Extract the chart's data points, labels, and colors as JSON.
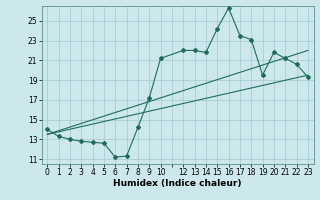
{
  "xlabel": "Humidex (Indice chaleur)",
  "background_color": "#cce8ec",
  "grid_color": "#aacdd4",
  "line_color": "#1e6b5e",
  "y_ticks": [
    11,
    13,
    15,
    17,
    19,
    21,
    23,
    25
  ],
  "xlim": [
    -0.5,
    23.5
  ],
  "ylim": [
    10.5,
    26.5
  ],
  "line1_x": [
    0,
    1,
    2,
    3,
    4,
    5,
    6,
    7,
    8,
    9,
    10,
    12,
    13,
    14,
    15,
    16,
    17,
    18,
    19,
    20,
    21,
    22,
    23
  ],
  "line1_y": [
    14.0,
    13.3,
    13.0,
    12.8,
    12.7,
    12.6,
    11.2,
    11.3,
    14.2,
    17.2,
    21.2,
    22.0,
    22.0,
    21.8,
    24.2,
    26.3,
    23.5,
    23.1,
    19.5,
    21.8,
    21.2,
    20.6,
    19.3
  ],
  "line2_x": [
    0,
    23
  ],
  "line2_y": [
    13.5,
    19.5
  ],
  "line3_x": [
    0,
    23
  ],
  "line3_y": [
    13.5,
    22.0
  ],
  "x_labels_sparse": [
    "0",
    "1",
    "2",
    "3",
    "4",
    "5",
    "6",
    "7",
    "8",
    "9",
    "10",
    "",
    "12",
    "13",
    "14",
    "15",
    "16",
    "17",
    "18",
    "19",
    "20",
    "21",
    "22",
    "23"
  ],
  "x_positions": [
    0,
    1,
    2,
    3,
    4,
    5,
    6,
    7,
    8,
    9,
    10,
    11,
    12,
    13,
    14,
    15,
    16,
    17,
    18,
    19,
    20,
    21,
    22,
    23
  ]
}
